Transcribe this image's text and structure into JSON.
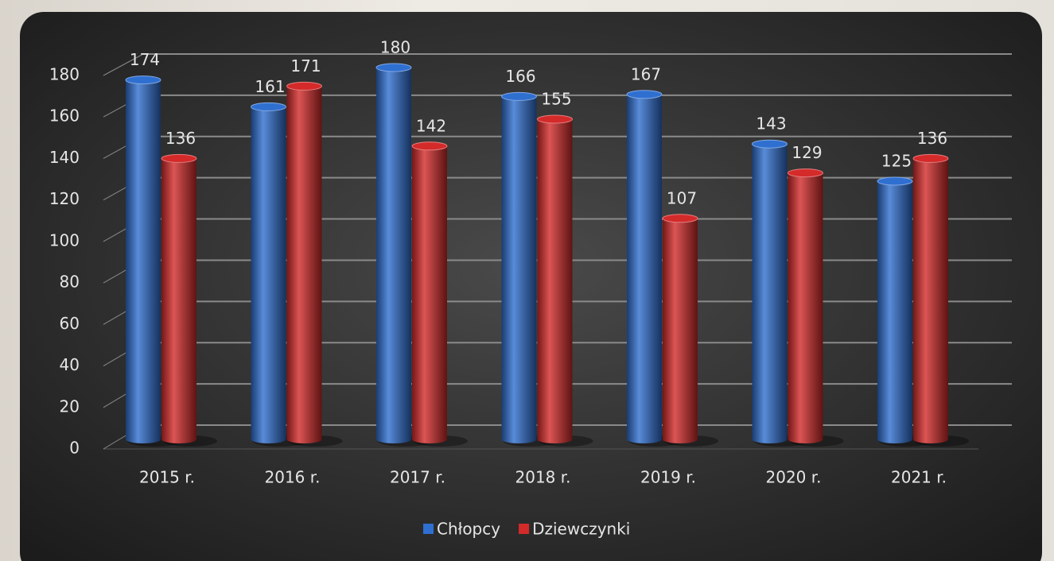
{
  "chart_data": {
    "type": "bar",
    "categories": [
      "2015 r.",
      "2016 r.",
      "2017 r.",
      "2018 r.",
      "2019 r.",
      "2020 r.",
      "2021 r."
    ],
    "series": [
      {
        "name": "Chłopcy",
        "color": "#2f6fd0",
        "values": [
          174,
          161,
          180,
          166,
          167,
          143,
          125
        ]
      },
      {
        "name": "Dziewczynki",
        "color": "#d42a2a",
        "values": [
          136,
          171,
          142,
          155,
          107,
          129,
          136
        ]
      }
    ],
    "ylim": [
      0,
      180
    ],
    "yticks": [
      0,
      20,
      40,
      60,
      80,
      100,
      120,
      140,
      160,
      180
    ],
    "grid": true,
    "legend": "bottom"
  }
}
